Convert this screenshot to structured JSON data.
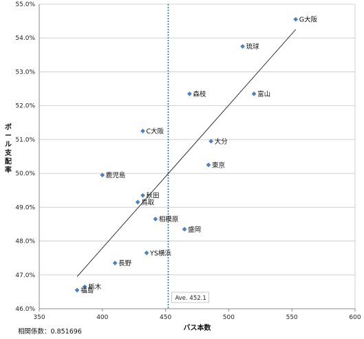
{
  "chart_data": {
    "type": "scatter",
    "xlabel": "バス本数",
    "ylabel": "ボール支配率",
    "xlim": [
      350,
      600
    ],
    "ylim": [
      46.0,
      55.0
    ],
    "xticks": [
      350,
      400,
      450,
      500,
      550,
      600
    ],
    "yticks": [
      46.0,
      47.0,
      48.0,
      49.0,
      50.0,
      51.0,
      52.0,
      53.0,
      54.0,
      55.0
    ],
    "y_tick_format": "percent_1dp",
    "grid": "horizontal",
    "marker": "diamond",
    "marker_color": "#4F81BD",
    "points": [
      {
        "label": "G大阪",
        "x": 553,
        "y": 54.55
      },
      {
        "label": "琉球",
        "x": 511,
        "y": 53.75
      },
      {
        "label": "森枝",
        "x": 469,
        "y": 52.35
      },
      {
        "label": "富山",
        "x": 520,
        "y": 52.35
      },
      {
        "label": "C大阪",
        "x": 432,
        "y": 51.25
      },
      {
        "label": "大分",
        "x": 486,
        "y": 50.95
      },
      {
        "label": "東京",
        "x": 484,
        "y": 50.25
      },
      {
        "label": "鹿児島",
        "x": 400,
        "y": 49.95
      },
      {
        "label": "秋田",
        "x": 432,
        "y": 49.35
      },
      {
        "label": "鳥取",
        "x": 428,
        "y": 49.15
      },
      {
        "label": "相模原",
        "x": 442,
        "y": 48.65
      },
      {
        "label": "盛岡",
        "x": 465,
        "y": 48.35
      },
      {
        "label": "YS横浜",
        "x": 435,
        "y": 47.65
      },
      {
        "label": "長野",
        "x": 410,
        "y": 47.35
      },
      {
        "label": "栃木",
        "x": 386,
        "y": 46.65
      },
      {
        "label": "福島",
        "x": 380,
        "y": 46.55
      }
    ],
    "trendline": {
      "x": [
        380,
        553
      ],
      "y": [
        46.95,
        54.25
      ],
      "color": "#333333"
    },
    "reference_line": {
      "x": 452.1,
      "label": "Ave. 452.1",
      "color": "#2E75B6",
      "style": "dotted"
    }
  },
  "correlation_text": "相関係数：0.851696"
}
